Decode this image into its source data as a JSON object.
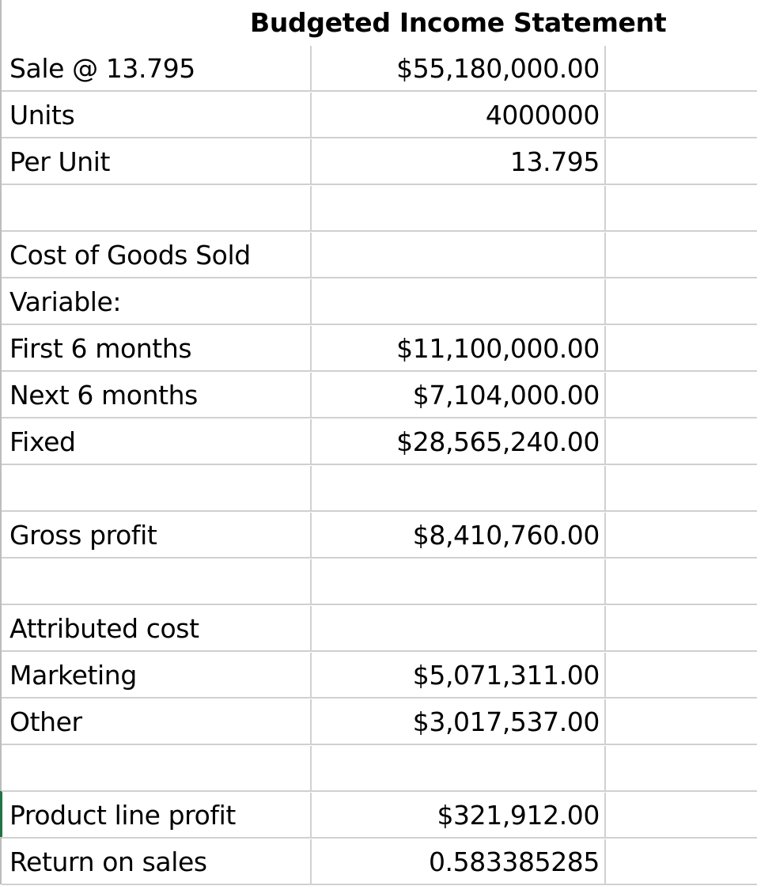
{
  "sheet": {
    "title": "Budgeted Income Statement",
    "rows": [
      {
        "label": "Sale @ 13.795",
        "value": "$55,180,000.00"
      },
      {
        "label": "Units",
        "value": "4000000"
      },
      {
        "label": "Per Unit",
        "value": "13.795"
      },
      {
        "label": "",
        "value": ""
      },
      {
        "label": "Cost of Goods Sold",
        "value": ""
      },
      {
        "label": "Variable:",
        "value": ""
      },
      {
        "label": "First 6 months",
        "value": "$11,100,000.00"
      },
      {
        "label": "Next 6 months",
        "value": "$7,104,000.00"
      },
      {
        "label": "Fixed",
        "value": "$28,565,240.00"
      },
      {
        "label": "",
        "value": ""
      },
      {
        "label": "Gross profit",
        "value": "$8,410,760.00"
      },
      {
        "label": "",
        "value": ""
      },
      {
        "label": "Attributed cost",
        "value": ""
      },
      {
        "label": "Marketing",
        "value": "$5,071,311.00"
      },
      {
        "label": "Other",
        "value": "$3,017,537.00"
      },
      {
        "label": "",
        "value": ""
      },
      {
        "label": "Product line profit",
        "value": "$321,912.00"
      },
      {
        "label": "Return on sales",
        "value": "0.583385285"
      }
    ]
  }
}
